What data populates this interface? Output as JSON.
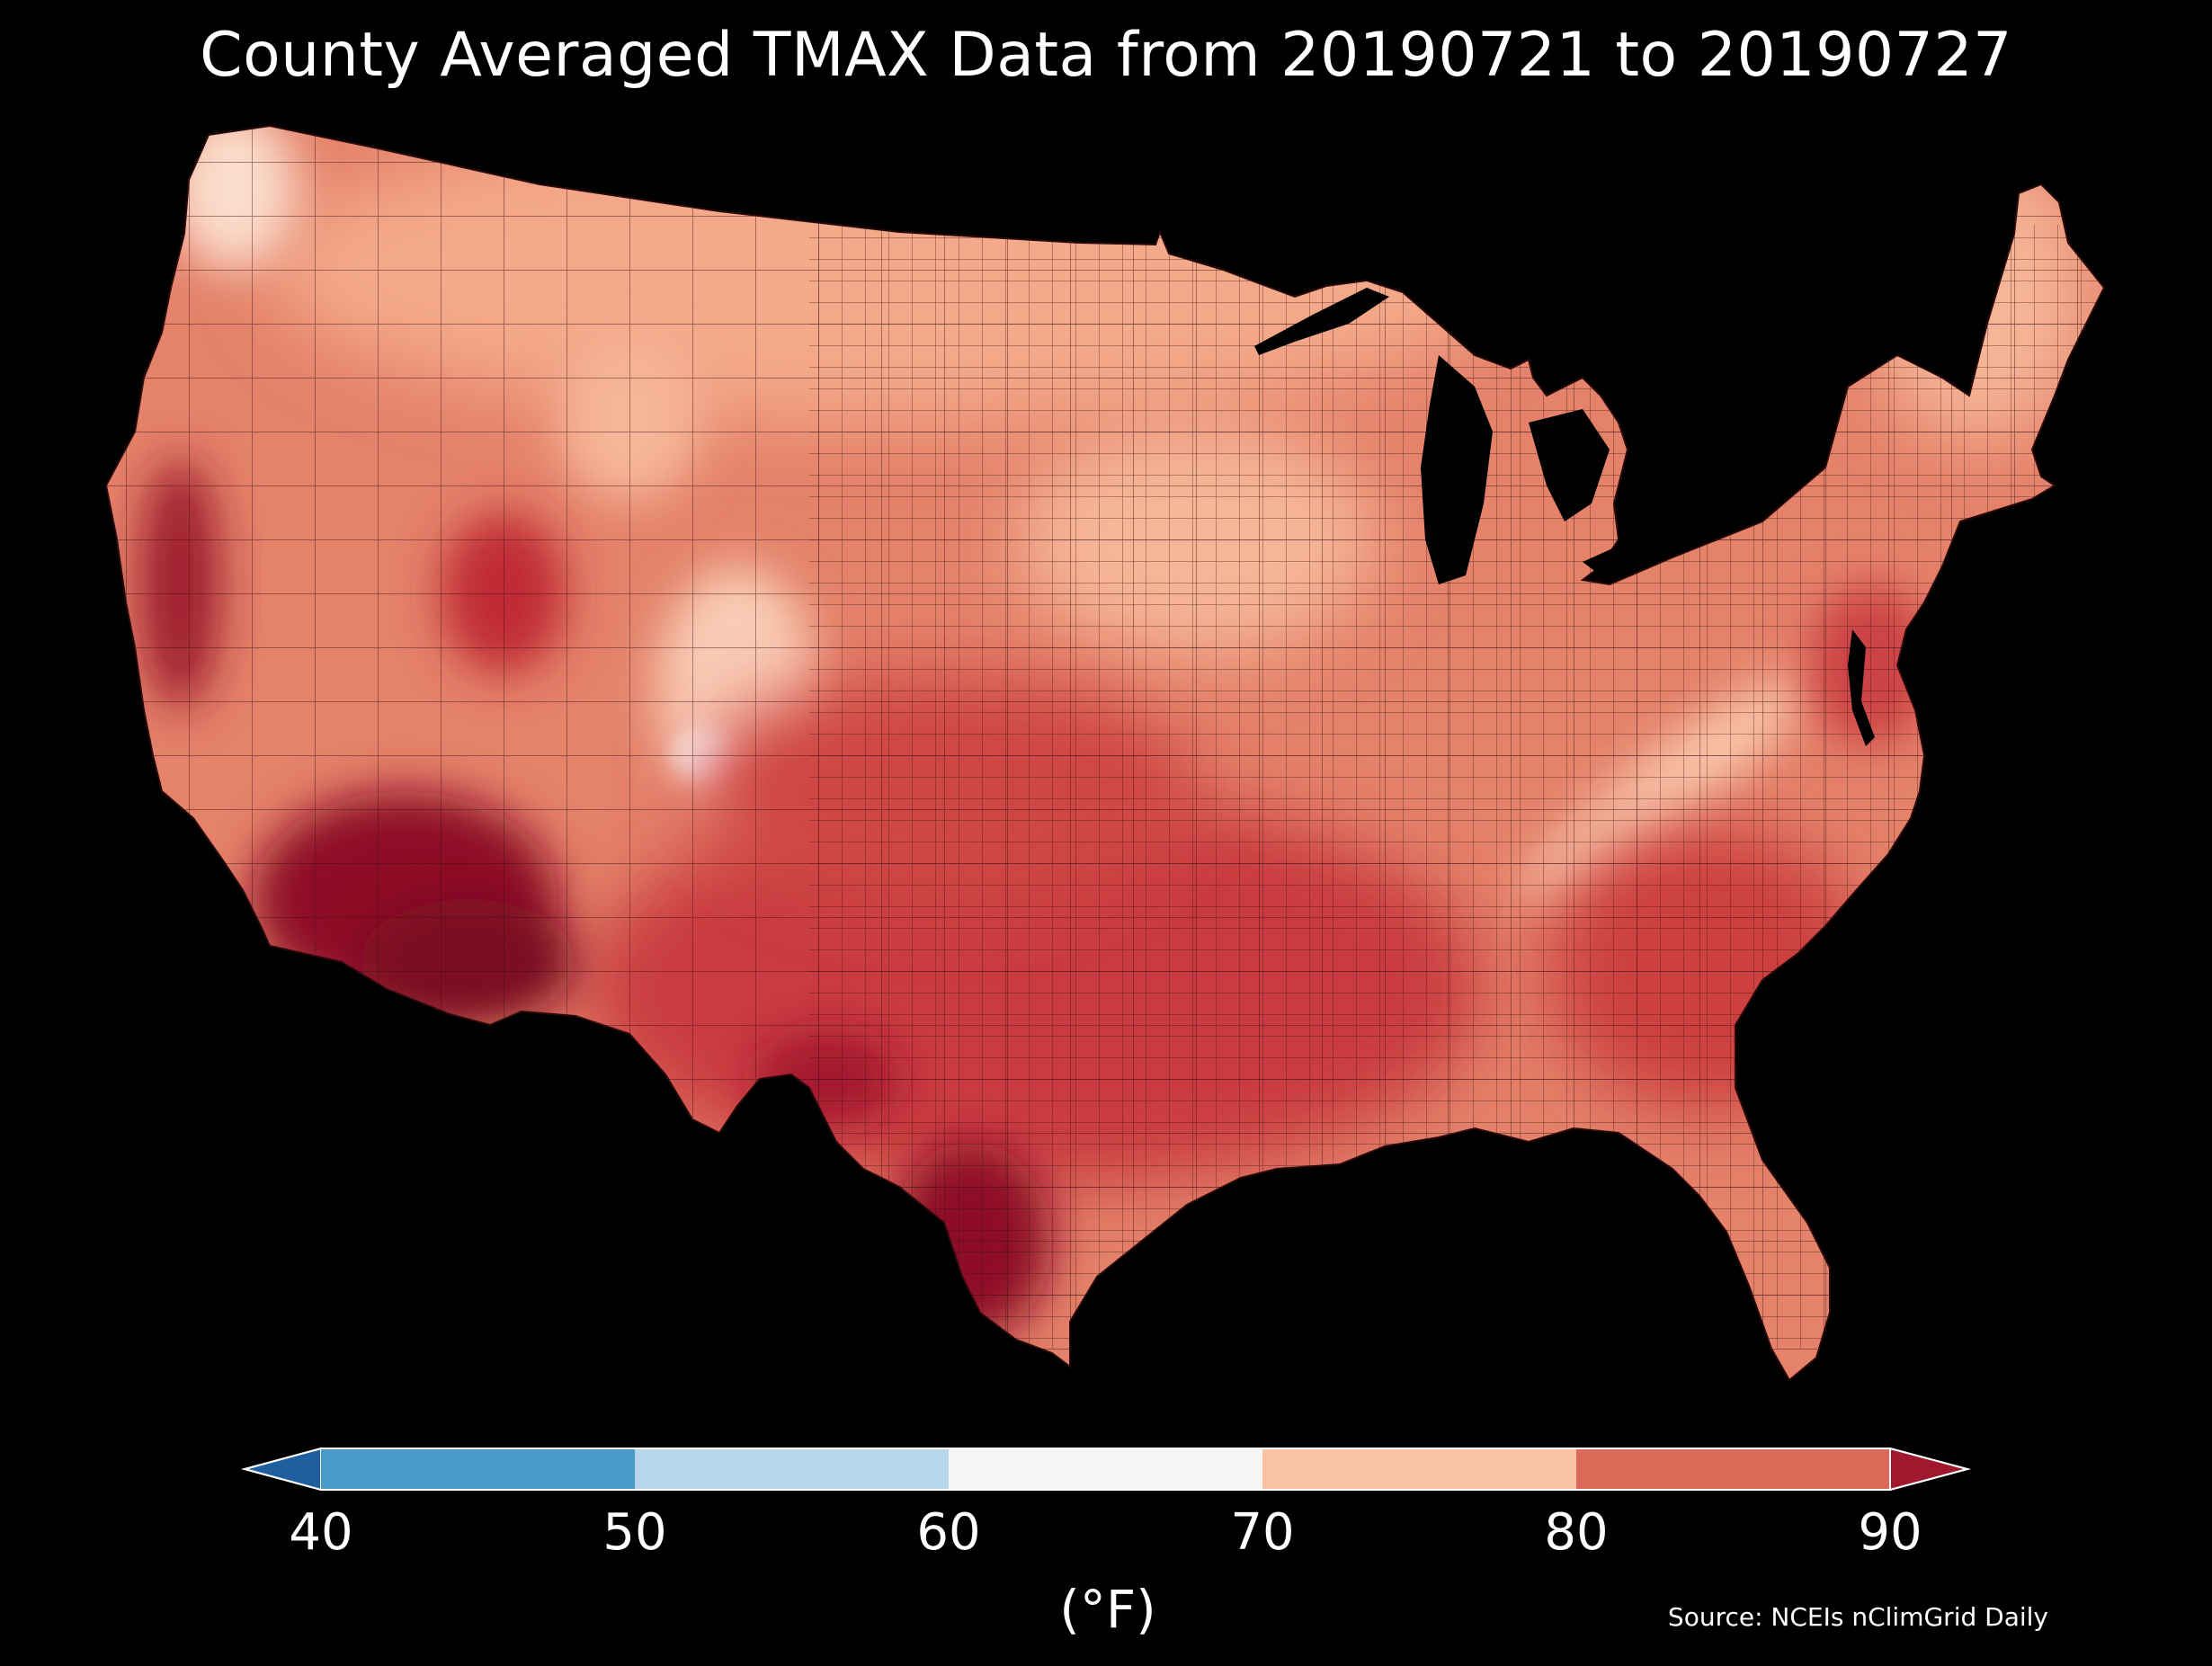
{
  "title": "County Averaged TMAX Data from 20190721 to 20190727",
  "map": {
    "region": "contiguous-united-states",
    "subject": "county-averaged-max-temperature"
  },
  "colorbar": {
    "ticks": [
      "40",
      "50",
      "60",
      "70",
      "80",
      "90"
    ],
    "unit": "(°F)",
    "bins": [
      {
        "range": "<40",
        "color": "#1f5fa0"
      },
      {
        "range": "40-50",
        "color": "#4a9ac8"
      },
      {
        "range": "50-60",
        "color": "#b6d7ea"
      },
      {
        "range": "60-70",
        "color": "#f5f5f5"
      },
      {
        "range": "70-80",
        "color": "#f8c2a5"
      },
      {
        "range": "80-90",
        "color": "#dd6a58"
      },
      {
        "range": ">90",
        "color": "#a0182e"
      }
    ]
  },
  "source": "Source: NCEIs nClimGrid Daily"
}
